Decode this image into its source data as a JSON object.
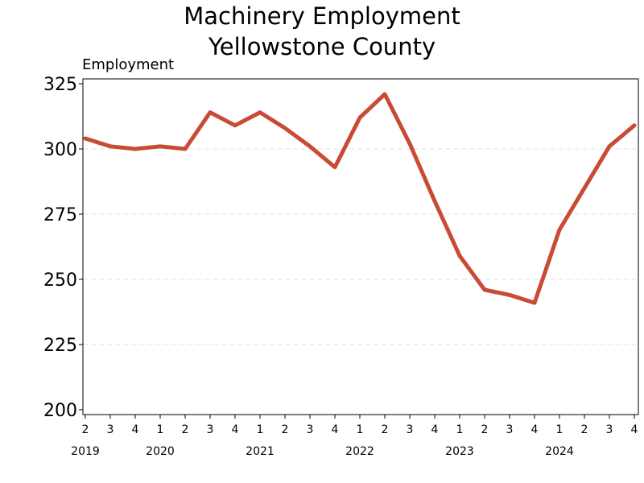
{
  "chart_data": {
    "type": "line",
    "title": [
      "Machinery Employment",
      "Yellowstone County"
    ],
    "ylabel": "Employment",
    "xlabel": "",
    "ylim": [
      200,
      325
    ],
    "yticks": [
      200,
      225,
      250,
      275,
      300,
      325
    ],
    "grid": "horizontal dashed",
    "x_quarter_labels": [
      "2",
      "3",
      "4",
      "1",
      "2",
      "3",
      "4",
      "1",
      "2",
      "3",
      "4",
      "1",
      "2",
      "3",
      "4",
      "1",
      "2",
      "3",
      "4",
      "1",
      "2",
      "3",
      "4"
    ],
    "x_year_labels": [
      {
        "label": "2019",
        "index": 0
      },
      {
        "label": "2020",
        "index": 3
      },
      {
        "label": "2021",
        "index": 7
      },
      {
        "label": "2022",
        "index": 11
      },
      {
        "label": "2023",
        "index": 15
      },
      {
        "label": "2024",
        "index": 19
      }
    ],
    "series": [
      {
        "color": "#c84b35",
        "values": [
          304,
          301,
          300,
          301,
          300,
          314,
          309,
          314,
          308,
          301,
          293,
          312,
          321,
          302,
          280,
          259,
          246,
          244,
          241,
          269,
          285,
          301,
          309
        ]
      }
    ]
  }
}
